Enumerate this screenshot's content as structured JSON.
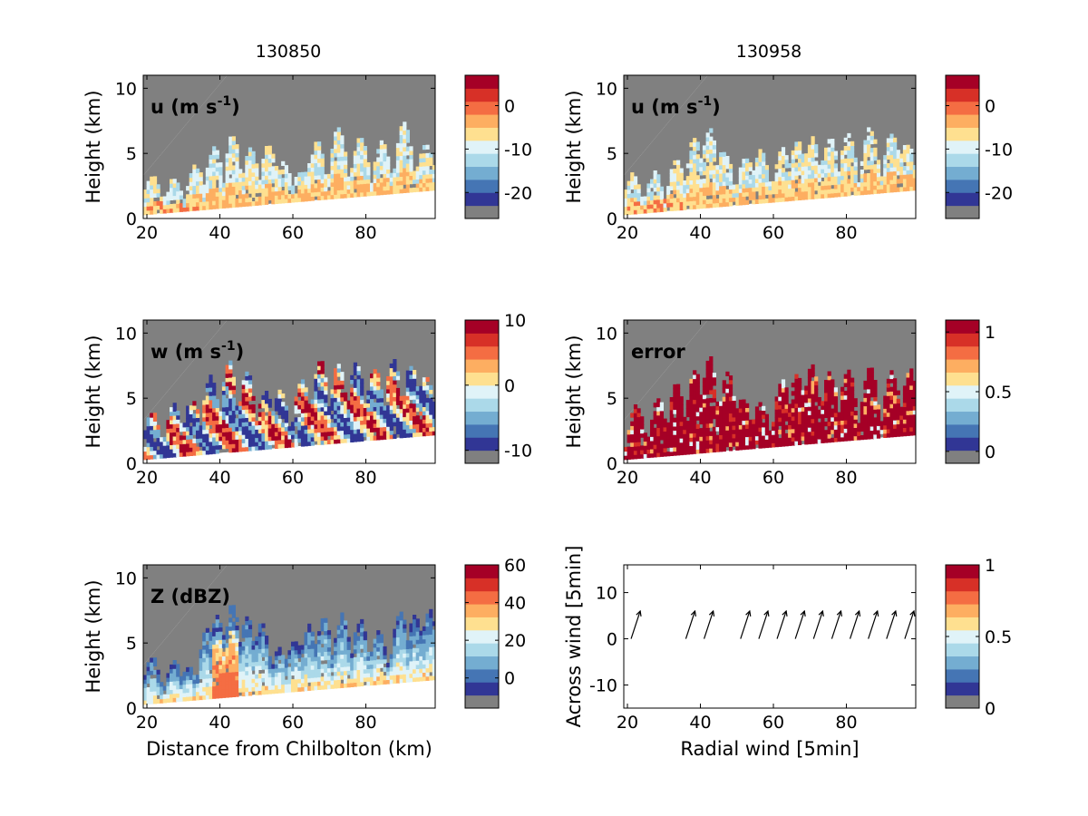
{
  "figure": {
    "column_titles": [
      "130850",
      "130958"
    ]
  },
  "palettes": {
    "diverging": [
      "#313695",
      "#4575b4",
      "#74add1",
      "#abd9e9",
      "#e0f3f8",
      "#fee090",
      "#fdae61",
      "#f46d43",
      "#d73027",
      "#a50026"
    ],
    "missing": "#808080"
  },
  "chart_data": [
    {
      "id": "p-u-left",
      "type": "heatmap",
      "label_main": "u (m s",
      "label_sup": "-1",
      "label_end": ")",
      "ylabel": "Height (km)",
      "xlabel": "",
      "xlim": [
        19,
        99
      ],
      "ylim": [
        0,
        11
      ],
      "xticks": [
        20,
        40,
        60,
        80
      ],
      "yticks": [
        0,
        5,
        10
      ],
      "colorbar": {
        "range": [
          -26,
          7
        ],
        "ticks": [
          0,
          -10,
          -20
        ],
        "ticklabels": [
          "0",
          "-10",
          "-20"
        ]
      },
      "scheme": "u",
      "seed": 11,
      "blobs": [
        [
          21,
          2.5
        ],
        [
          27,
          2.0
        ],
        [
          33,
          3.0
        ],
        [
          38,
          4.2
        ],
        [
          43,
          5.0
        ],
        [
          48,
          3.8
        ],
        [
          53,
          4.0
        ],
        [
          57,
          2.5
        ],
        [
          62,
          1.8
        ],
        [
          66,
          4.0
        ],
        [
          72,
          4.8
        ],
        [
          78,
          4.0
        ],
        [
          84,
          3.5
        ],
        [
          90,
          4.8
        ],
        [
          96,
          3.0
        ]
      ]
    },
    {
      "id": "p-u-right",
      "type": "heatmap",
      "label_main": "u (m s",
      "label_sup": "-1",
      "label_end": ")",
      "ylabel": "Height (km)",
      "xlabel": "",
      "xlim": [
        19,
        99
      ],
      "ylim": [
        0,
        11
      ],
      "xticks": [
        20,
        40,
        60,
        80
      ],
      "yticks": [
        0,
        5,
        10
      ],
      "colorbar": {
        "range": [
          -26,
          7
        ],
        "ticks": [
          0,
          -10,
          -20
        ],
        "ticklabels": [
          "0",
          "-10",
          "-20"
        ]
      },
      "scheme": "u",
      "seed": 23,
      "blobs": [
        [
          21,
          2.5
        ],
        [
          27,
          2.5
        ],
        [
          33,
          3.5
        ],
        [
          38,
          5.0
        ],
        [
          42,
          5.5
        ],
        [
          46,
          4.0
        ],
        [
          52,
          3.0
        ],
        [
          56,
          3.5
        ],
        [
          62,
          3.5
        ],
        [
          66,
          4.0
        ],
        [
          70,
          4.2
        ],
        [
          75,
          4.0
        ],
        [
          80,
          4.2
        ],
        [
          86,
          4.5
        ],
        [
          92,
          4.0
        ],
        [
          96,
          3.2
        ]
      ]
    },
    {
      "id": "p-w-left",
      "type": "heatmap",
      "label_main": "w (m s",
      "label_sup": "-1",
      "label_end": ")",
      "ylabel": "Height (km)",
      "xlabel": "",
      "xlim": [
        19,
        99
      ],
      "ylim": [
        0,
        11
      ],
      "xticks": [
        20,
        40,
        60,
        80
      ],
      "yticks": [
        0,
        5,
        10
      ],
      "colorbar": {
        "range": [
          -12,
          10
        ],
        "ticks": [
          10,
          0,
          -10
        ],
        "ticklabels": [
          "10",
          "0",
          "-10"
        ]
      },
      "scheme": "w",
      "seed": 37,
      "blobs": [
        [
          21,
          3.0
        ],
        [
          27,
          3.5
        ],
        [
          32,
          4.0
        ],
        [
          37,
          5.5
        ],
        [
          42,
          6.5
        ],
        [
          47,
          5.5
        ],
        [
          52,
          4.0
        ],
        [
          56,
          4.0
        ],
        [
          62,
          4.5
        ],
        [
          67,
          6.0
        ],
        [
          72,
          5.5
        ],
        [
          77,
          5.5
        ],
        [
          82,
          5.0
        ],
        [
          87,
          5.5
        ],
        [
          92,
          5.0
        ],
        [
          96,
          4.2
        ]
      ]
    },
    {
      "id": "p-err-right",
      "type": "heatmap",
      "label_main": "error",
      "label_sup": "",
      "label_end": "",
      "ylabel": "Height (km)",
      "xlabel": "",
      "xlim": [
        19,
        99
      ],
      "ylim": [
        0,
        11
      ],
      "xticks": [
        20,
        40,
        60,
        80
      ],
      "yticks": [
        0,
        5,
        10
      ],
      "colorbar": {
        "range": [
          -0.1,
          1.1
        ],
        "ticks": [
          1,
          0.5,
          0
        ],
        "ticklabels": [
          "1",
          "0.5",
          "0"
        ]
      },
      "scheme": "err",
      "seed": 41,
      "blobs": [
        [
          22,
          3.5
        ],
        [
          28,
          4.0
        ],
        [
          33,
          5.0
        ],
        [
          38,
          6.0
        ],
        [
          42,
          6.8
        ],
        [
          47,
          5.5
        ],
        [
          51,
          3.5
        ],
        [
          56,
          3.0
        ],
        [
          62,
          4.5
        ],
        [
          66,
          5.0
        ],
        [
          70,
          5.5
        ],
        [
          75,
          5.0
        ],
        [
          80,
          5.0
        ],
        [
          86,
          5.0
        ],
        [
          92,
          4.5
        ],
        [
          97,
          4.5
        ]
      ]
    },
    {
      "id": "p-z-left",
      "type": "heatmap",
      "label_main": "Z (dBZ)",
      "label_sup": "",
      "label_end": "",
      "ylabel": "Height (km)",
      "xlabel": "Distance from Chilbolton (km)",
      "xlim": [
        19,
        99
      ],
      "ylim": [
        0,
        11
      ],
      "xticks": [
        20,
        40,
        60,
        80
      ],
      "yticks": [
        0,
        5,
        10
      ],
      "colorbar": {
        "range": [
          -16,
          60
        ],
        "ticks": [
          60,
          40,
          20,
          0
        ],
        "ticklabels": [
          "60",
          "40",
          "20",
          "0"
        ]
      },
      "scheme": "z",
      "seed": 53,
      "blobs": [
        [
          21,
          3.0
        ],
        [
          27,
          2.5
        ],
        [
          31,
          2.0
        ],
        [
          36,
          5.0
        ],
        [
          39,
          6.0
        ],
        [
          43,
          6.8
        ],
        [
          47,
          5.5
        ],
        [
          51,
          5.0
        ],
        [
          56,
          3.0
        ],
        [
          60,
          3.5
        ],
        [
          64,
          4.5
        ],
        [
          68,
          5.0
        ],
        [
          73,
          5.2
        ],
        [
          78,
          4.5
        ],
        [
          83,
          3.5
        ],
        [
          89,
          5.0
        ],
        [
          93,
          4.5
        ],
        [
          97,
          4.8
        ]
      ]
    },
    {
      "id": "p-wind-right",
      "type": "scatter",
      "ylabel": "Across wind [5min]",
      "xlabel": "Radial wind [5min]",
      "xlim": [
        19,
        99
      ],
      "ylim": [
        -15,
        16
      ],
      "xticks": [
        20,
        40,
        60,
        80
      ],
      "yticks": [
        -10,
        0,
        10
      ],
      "colorbar": {
        "range": [
          0,
          1
        ],
        "ticks": [
          1,
          0.5,
          0
        ],
        "ticklabels": [
          "1",
          "0.5",
          "0"
        ]
      },
      "vectors_x": [
        21,
        36,
        41,
        51,
        56,
        61,
        66,
        71,
        76,
        81,
        86,
        91,
        96
      ],
      "vector_u": 2.5,
      "vector_v": 1.5
    }
  ]
}
